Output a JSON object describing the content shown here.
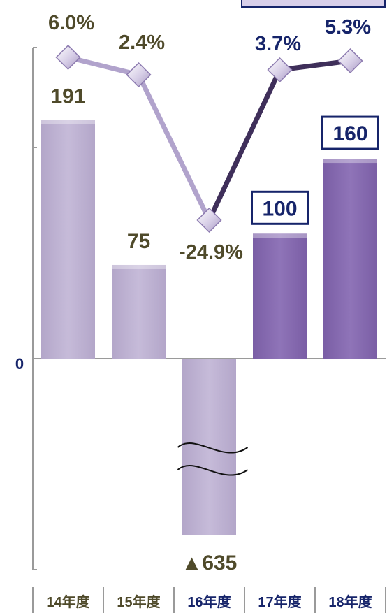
{
  "chart_data": {
    "type": "bar",
    "categories": [
      "14年度",
      "15年度",
      "16年度",
      "17年度",
      "18年度"
    ],
    "bar_values": [
      191,
      75,
      -635,
      100,
      160
    ],
    "bar_labels": [
      "191",
      "75",
      "▲635",
      "100",
      "160"
    ],
    "boxed_bars": [
      3,
      4
    ],
    "axis_zero_label": "0",
    "broken_axis": true,
    "line_values": [
      6.0,
      2.4,
      -24.9,
      3.7,
      5.3
    ],
    "line_labels": [
      "6.0%",
      "2.4%",
      "-24.9%",
      "3.7%",
      "5.3%"
    ],
    "colors": {
      "bar_light": "#bfb3d3",
      "bar_dark": "#8468ad",
      "line_light": "#b1a3cc",
      "line_dark": "#3f2f5a",
      "label_olive": "#4f4a2a",
      "label_navy": "#16246a",
      "box_border": "#16246a",
      "axis": "#9a9a9a"
    }
  }
}
